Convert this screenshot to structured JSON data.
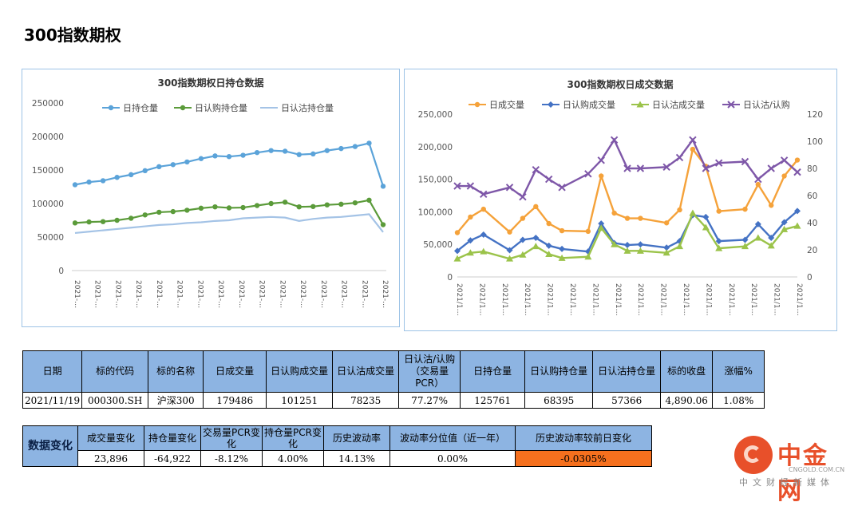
{
  "page_title": "300指数期权",
  "chart_data": [
    {
      "type": "line",
      "title": "300指数期权日持仓数据",
      "xlabel": "",
      "ylabel": "",
      "ylim": [
        0,
        250000
      ],
      "yticks": [
        "250000",
        "200000",
        "150000",
        "100000",
        "50000",
        "0"
      ],
      "xtick_label": "2021-…",
      "legend": "top",
      "series": [
        {
          "name": "日持仓量",
          "color": "#5ba3d9",
          "values": [
            128000,
            132000,
            134000,
            139000,
            143000,
            149000,
            155000,
            158000,
            162000,
            167000,
            171000,
            170000,
            172000,
            176000,
            179000,
            178000,
            173000,
            174000,
            179000,
            182000,
            185000,
            190000,
            125761
          ]
        },
        {
          "name": "日认购持仓量",
          "color": "#5b9b3a",
          "values": [
            71000,
            72500,
            73000,
            75000,
            78000,
            83000,
            87000,
            88000,
            90000,
            93000,
            95000,
            93500,
            94000,
            97000,
            100000,
            102000,
            95000,
            95500,
            98000,
            99000,
            101000,
            105000,
            68395
          ]
        },
        {
          "name": "日认沽持仓量",
          "color": "#a4c3e6",
          "values": [
            56000,
            58000,
            60000,
            62000,
            64000,
            66000,
            68000,
            69000,
            71000,
            72000,
            74000,
            75000,
            78000,
            79000,
            80000,
            79000,
            74000,
            77000,
            79000,
            80000,
            82000,
            84000,
            57366
          ]
        }
      ]
    },
    {
      "type": "line",
      "title": "300指数期权日成交数据",
      "xlabel": "",
      "ylabel": "",
      "ylim": [
        0,
        250000
      ],
      "y2lim": [
        0,
        120
      ],
      "yticks": [
        "250,000",
        "200,000",
        "150,000",
        "100,000",
        "50,000",
        "0"
      ],
      "y2ticks": [
        "120",
        "100",
        "80",
        "60",
        "40",
        "20",
        "0"
      ],
      "xtick_label": "2021/1…",
      "legend": "top",
      "series": [
        {
          "name": "日成交量",
          "color": "#f5a23a",
          "axis": "left",
          "values": [
            68000,
            92000,
            104000,
            69000,
            90000,
            108000,
            82000,
            71000,
            70000,
            155000,
            98000,
            90000,
            90000,
            83000,
            103000,
            196000,
            170000,
            101000,
            104000,
            142000,
            110000,
            155000,
            179486
          ]
        },
        {
          "name": "日认购成交量",
          "color": "#4472c4",
          "axis": "left",
          "values": [
            40000,
            56000,
            65000,
            41000,
            57000,
            60000,
            48000,
            43000,
            39000,
            82000,
            52000,
            49000,
            50000,
            45000,
            55000,
            95000,
            92000,
            55000,
            57000,
            81000,
            60000,
            84000,
            101251
          ]
        },
        {
          "name": "日认沽成交量",
          "color": "#9bc34a",
          "axis": "left",
          "values": [
            28000,
            37000,
            39000,
            28000,
            34000,
            47000,
            35000,
            29000,
            31000,
            75000,
            50000,
            40000,
            40000,
            37000,
            47000,
            98000,
            76000,
            44000,
            47000,
            60000,
            48000,
            73000,
            78235
          ]
        },
        {
          "name": "日认沽/认购",
          "color": "#7e57a8",
          "axis": "right",
          "values": [
            67,
            67,
            61,
            66,
            59,
            79,
            72,
            66,
            76,
            86,
            101,
            80,
            80,
            81,
            88,
            101,
            80,
            84,
            85,
            72,
            80,
            86,
            77.27
          ]
        }
      ],
      "x_positions": [
        0,
        1,
        2,
        4,
        5,
        6,
        7,
        8,
        10,
        11,
        12,
        13,
        14,
        16,
        17,
        18,
        19,
        20,
        22,
        23,
        24,
        25,
        26
      ]
    }
  ],
  "table1": {
    "headers": [
      "日期",
      "标的代码",
      "标的名称",
      "日成交量",
      "日认购成交量",
      "日认沽成交量",
      "日认沽/认购（交易量PCR）",
      "日持仓量",
      "日认购持仓量",
      "日认沽持仓量",
      "标的收盘",
      "涨幅%"
    ],
    "row": [
      "2021/11/19",
      "000300.SH",
      "沪深300",
      "179486",
      "101251",
      "78235",
      "77.27%",
      "125761",
      "68395",
      "57366",
      "4,890.06",
      "1.08%"
    ]
  },
  "table2": {
    "label": "数据变化",
    "headers": [
      "成交量变化",
      "持仓量变化",
      "交易量PCR变化",
      "持仓量PCR变化",
      "历史波动率",
      "波动率分位值（近一年）",
      "历史波动率较前日变化"
    ],
    "row": [
      "23,896",
      "-64,922",
      "-8.12%",
      "4.00%",
      "14.13%",
      "0.00%",
      "-0.0305%"
    ]
  },
  "logo": {
    "cn": "中金网",
    "en": "CNGOLD.COM.CN",
    "sub": "中文财经新媒体"
  }
}
